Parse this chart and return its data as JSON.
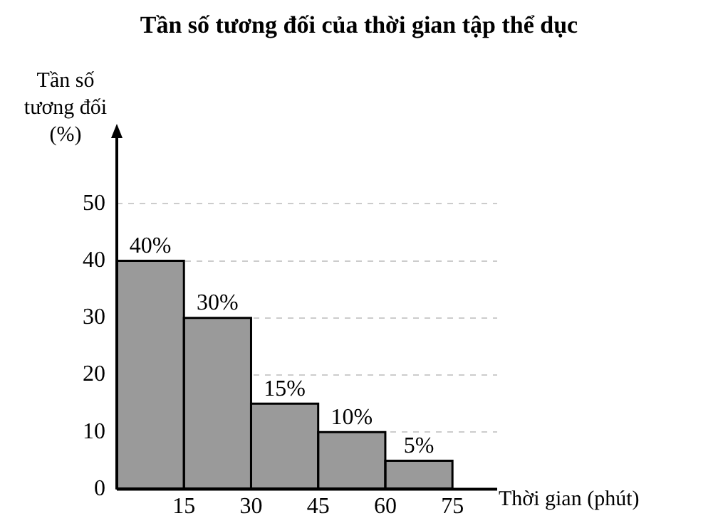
{
  "chart_data": {
    "type": "histogram",
    "title": "Tần số tương đối của thời gian tập thể dục",
    "xlabel": "Thời gian (phút)",
    "ylabel": "Tần số\ntương đối\n(%)",
    "bins": [
      0,
      15,
      30,
      45,
      60,
      75
    ],
    "values": [
      40,
      30,
      15,
      10,
      5
    ],
    "value_labels": [
      "40%",
      "30%",
      "15%",
      "10%",
      "5%"
    ],
    "color": "#9a9a9a",
    "xlim": [
      0,
      85
    ],
    "xticks": [
      15,
      30,
      45,
      60,
      75
    ],
    "ylim": [
      0,
      62
    ],
    "yticks": [
      0,
      10,
      20,
      30,
      40,
      50
    ],
    "grid": "y",
    "legend": false
  }
}
